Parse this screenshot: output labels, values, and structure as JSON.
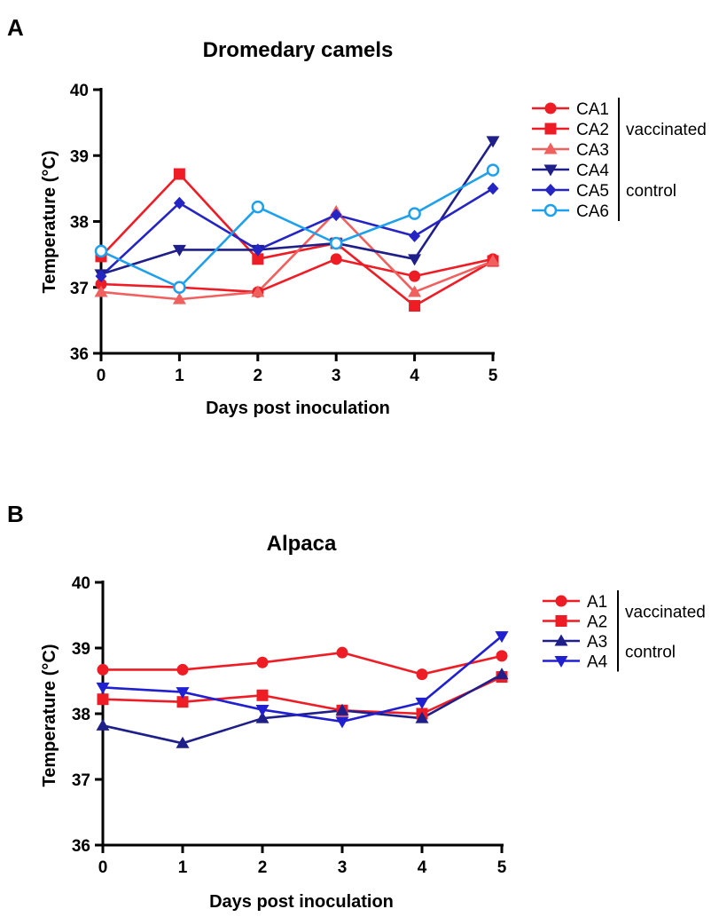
{
  "panels": [
    {
      "letter": "A",
      "chart_data": {
        "type": "line",
        "title": "Dromedary camels",
        "xlabel": "Days post inoculation",
        "ylabel": "Temperature (°C)",
        "x": [
          0,
          1,
          2,
          3,
          4,
          5
        ],
        "xlim": [
          0,
          5
        ],
        "ylim": [
          36,
          40
        ],
        "yticks": [
          36,
          37,
          38,
          39,
          40
        ],
        "xticks": [
          0,
          1,
          2,
          3,
          4,
          5
        ],
        "grid": false,
        "legend_position": "right",
        "series": [
          {
            "name": "CA1",
            "color": "#ee1c24",
            "marker": "circle",
            "values": [
              37.05,
              37.0,
              36.93,
              37.43,
              37.17,
              37.43
            ]
          },
          {
            "name": "CA2",
            "color": "#ee1c24",
            "marker": "square",
            "values": [
              37.47,
              38.72,
              37.43,
              37.67,
              36.72,
              37.4
            ]
          },
          {
            "name": "CA3",
            "color": "#f0605e",
            "marker": "triangle-up",
            "values": [
              36.93,
              36.82,
              36.93,
              38.15,
              36.93,
              37.4
            ]
          },
          {
            "name": "CA4",
            "color": "#1f1f8a",
            "marker": "triangle-down",
            "values": [
              37.2,
              37.57,
              37.57,
              37.67,
              37.43,
              39.22
            ]
          },
          {
            "name": "CA5",
            "color": "#2525c4",
            "marker": "diamond",
            "values": [
              37.17,
              38.28,
              37.57,
              38.1,
              37.78,
              38.5
            ]
          },
          {
            "name": "CA6",
            "color": "#1ea0ec",
            "marker": "circle-open",
            "values": [
              37.55,
              37.0,
              38.22,
              37.67,
              38.12,
              38.78
            ]
          }
        ],
        "groups": [
          {
            "label": "vaccinated",
            "members": [
              0,
              1,
              2
            ]
          },
          {
            "label": "control",
            "members": [
              3,
              4,
              5
            ]
          }
        ]
      }
    },
    {
      "letter": "B",
      "chart_data": {
        "type": "line",
        "title": "Alpaca",
        "xlabel": "Days post inoculation",
        "ylabel": "Temperature (°C)",
        "x": [
          0,
          1,
          2,
          3,
          4,
          5
        ],
        "xlim": [
          0,
          5
        ],
        "ylim": [
          36,
          40
        ],
        "yticks": [
          36,
          37,
          38,
          39,
          40
        ],
        "xticks": [
          0,
          1,
          2,
          3,
          4,
          5
        ],
        "grid": false,
        "legend_position": "right",
        "series": [
          {
            "name": "A1",
            "color": "#ee1c24",
            "marker": "circle",
            "values": [
              38.67,
              38.67,
              38.78,
              38.93,
              38.6,
              38.88
            ]
          },
          {
            "name": "A2",
            "color": "#ee1c24",
            "marker": "square",
            "values": [
              38.22,
              38.18,
              38.28,
              38.05,
              38.0,
              38.56
            ]
          },
          {
            "name": "A3",
            "color": "#1f1f8a",
            "marker": "triangle-up",
            "values": [
              37.82,
              37.55,
              37.93,
              38.05,
              37.93,
              38.6
            ]
          },
          {
            "name": "A4",
            "color": "#2020d0",
            "marker": "triangle-down",
            "values": [
              38.4,
              38.33,
              38.06,
              37.88,
              38.17,
              39.18
            ]
          }
        ],
        "groups": [
          {
            "label": "vaccinated",
            "members": [
              0,
              1
            ]
          },
          {
            "label": "control",
            "members": [
              2,
              3
            ]
          }
        ]
      }
    }
  ]
}
